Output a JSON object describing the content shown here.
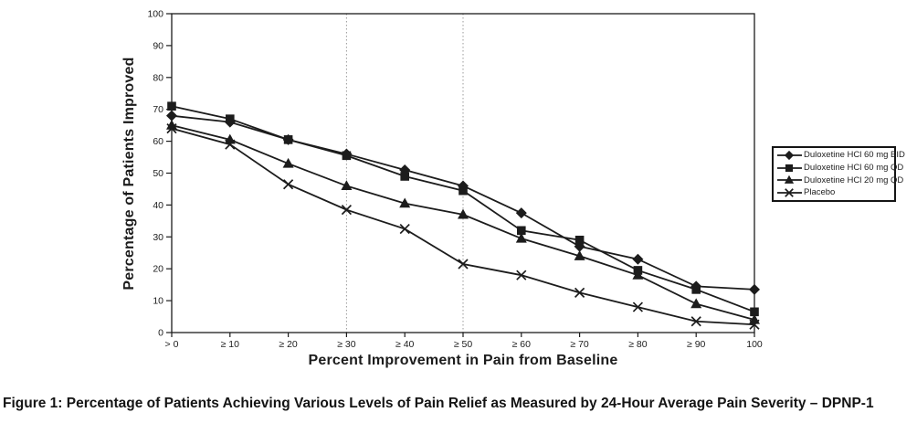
{
  "figure": {
    "caption": "Figure 1: Percentage of Patients Achieving Various Levels of Pain Relief as Measured by 24-Hour Average Pain Severity – DPNP-1"
  },
  "chart_data": {
    "type": "line",
    "title": "",
    "xlabel": "Percent Improvement in Pain from Baseline",
    "ylabel": "Percentage of Patients Improved",
    "categories": [
      "> 0",
      "≥ 10",
      "≥ 20",
      "≥ 30",
      "≥ 40",
      "≥ 50",
      "≥ 60",
      "≥ 70",
      "≥ 80",
      "≥ 90",
      "100"
    ],
    "ylim": [
      0,
      100
    ],
    "ytick_step": 10,
    "ytick_labels": [
      "0",
      "10",
      "20",
      "30",
      "40",
      "50",
      "60",
      "70",
      "80",
      "90",
      "100"
    ],
    "dashed_gridlines_at": [
      "≥ 30",
      "≥ 50"
    ],
    "grid": "vertical-dashed-only",
    "legend_position": "right-outside",
    "line_color": "#1c1c1c",
    "gridline_color": "#999999",
    "axis_color": "#1c1c1c",
    "series": [
      {
        "name": "Duloxetine HCl 60 mg BID",
        "marker": "diamond",
        "values": [
          68,
          66,
          60.5,
          56,
          51,
          46,
          37.5,
          27,
          23,
          14.5,
          13.5
        ]
      },
      {
        "name": "Duloxetine HCl 60 mg QD",
        "marker": "square",
        "values": [
          71,
          67,
          60.5,
          55.5,
          49,
          44.5,
          32,
          29,
          19.5,
          13.5,
          6.5
        ]
      },
      {
        "name": "Duloxetine HCl 20 mg QD",
        "marker": "triangle",
        "values": [
          65,
          60.5,
          53,
          46,
          40.5,
          37,
          29.5,
          24,
          18,
          9,
          4
        ]
      },
      {
        "name": "Placebo",
        "marker": "x",
        "values": [
          64,
          59,
          46.5,
          38.5,
          32.5,
          21.5,
          18,
          12.5,
          8,
          3.5,
          2.5
        ]
      }
    ]
  }
}
